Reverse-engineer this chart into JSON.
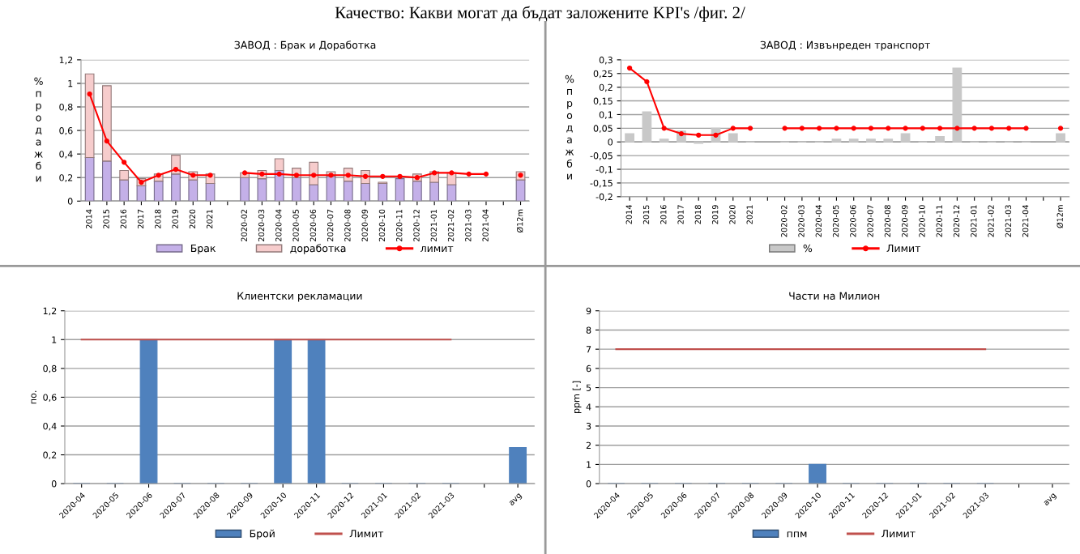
{
  "chart_data": [
    {
      "type": "bar",
      "title": "ЗАВОД : Брак и Доработка",
      "ylabel": "% продажби",
      "stacked": true,
      "grid": "y",
      "legend": "bottom",
      "annotations": [
        "Качество: Какви могат да бъдат заложените KPI's /фиг. 2/"
      ],
      "categories": [
        "2014",
        "2015",
        "2016",
        "2017",
        "2018",
        "2019",
        "2020",
        "2021",
        null,
        "2020-02",
        "2020-03",
        "2020-04",
        "2020-05",
        "2020-06",
        "2020-07",
        "2020-08",
        "2020-09",
        "2020-10",
        "2020-11",
        "2020-12",
        "2021-01",
        "2021-02",
        "2021-03",
        "2021-04",
        null,
        "Ø12m"
      ],
      "ylim": [
        0,
        1.2
      ],
      "yticks": [
        0,
        {
          "value": 0.2,
          "label": "0,2"
        },
        {
          "value": 0.4,
          "label": "0,4"
        },
        {
          "value": 0.6,
          "label": "0,6"
        },
        {
          "value": 0.8,
          "label": "0,8"
        },
        1,
        {
          "value": 1.2,
          "label": "1,2"
        }
      ],
      "series": [
        {
          "name": "Брак",
          "color": "#c4b0e8",
          "values": [
            0.37,
            0.34,
            0.18,
            0.13,
            0.17,
            0.23,
            0.18,
            0.15,
            null,
            0.2,
            0.19,
            0.26,
            0.2,
            0.14,
            0.21,
            0.17,
            0.15,
            0.15,
            0.19,
            0.17,
            0.16,
            0.14,
            null,
            null,
            null,
            0.18
          ]
        },
        {
          "name": "доработка",
          "color": "#f6cccc",
          "values": [
            0.71,
            0.64,
            0.08,
            0.06,
            0.06,
            0.16,
            0.07,
            0.08,
            null,
            0.04,
            0.07,
            0.1,
            0.08,
            0.19,
            0.04,
            0.11,
            0.11,
            0.01,
            null,
            0.06,
            0.09,
            0.1,
            null,
            null,
            null,
            0.07
          ]
        },
        {
          "name": "лимит",
          "type": "line",
          "color": "#ff0000",
          "marker": "circle",
          "values": [
            0.91,
            0.51,
            0.33,
            0.16,
            0.22,
            0.27,
            0.22,
            0.22,
            null,
            0.24,
            0.23,
            0.23,
            0.22,
            0.22,
            0.22,
            0.22,
            0.21,
            0.21,
            0.21,
            0.2,
            0.24,
            0.24,
            0.23,
            0.23,
            null,
            0.22
          ]
        }
      ]
    },
    {
      "type": "bar",
      "title": "ЗАВОД : Извънреден транспорт",
      "ylabel": "% продажби",
      "grid": "y",
      "legend": "bottom",
      "categories": [
        "2014",
        "2015",
        "2016",
        "2017",
        "2018",
        "2019",
        "2020",
        "2021",
        null,
        "2020-02",
        "2020-03",
        "2020-04",
        "2020-05",
        "2020-06",
        "2020-07",
        "2020-08",
        "2020-09",
        "2020-10",
        "2020-11",
        "2020-12",
        "2021-01",
        "2021-02",
        "2021-03",
        "2021-04",
        null,
        "Ø12m"
      ],
      "ylim": [
        -0.2,
        0.3
      ],
      "yticks": [
        {
          "value": -0.2,
          "label": "-0,2"
        },
        {
          "value": -0.15,
          "label": "-0,15"
        },
        {
          "value": -0.1,
          "label": "-0,1"
        },
        {
          "value": -0.05,
          "label": "-0,05"
        },
        0,
        {
          "value": 0.05,
          "label": "0,05"
        },
        {
          "value": 0.1,
          "label": "0,1"
        },
        {
          "value": 0.15,
          "label": "0,15"
        },
        {
          "value": 0.2,
          "label": "0,2"
        },
        {
          "value": 0.25,
          "label": "0,25"
        },
        {
          "value": 0.3,
          "label": "0,3"
        }
      ],
      "series": [
        {
          "name": "%",
          "color": "#c8c8c8",
          "values": [
            0.03,
            0.11,
            0.01,
            0.04,
            -0.005,
            0.05,
            0.03,
            0,
            null,
            0,
            0,
            0,
            0.01,
            0.01,
            0.01,
            0.01,
            0.03,
            0,
            0.02,
            0.27,
            0,
            0,
            0,
            0,
            null,
            0.03
          ]
        },
        {
          "name": "Лимит",
          "type": "line",
          "color": "#ff0000",
          "marker": "circle",
          "values": [
            0.27,
            0.22,
            0.05,
            0.03,
            0.025,
            0.025,
            0.05,
            0.05,
            null,
            0.05,
            0.05,
            0.05,
            0.05,
            0.05,
            0.05,
            0.05,
            0.05,
            0.05,
            0.05,
            0.05,
            0.05,
            0.05,
            0.05,
            0.05,
            null,
            0.05
          ]
        }
      ]
    },
    {
      "type": "bar",
      "title": "Клиентски рекламации",
      "ylabel": "по.",
      "grid": "y",
      "legend": "bottom",
      "categories": [
        "2020-04",
        "2020-05",
        "2020-06",
        "2020-07",
        "2020-08",
        "2020-09",
        "2020-10",
        "2020-11",
        "2020-12",
        "2021-01",
        "2021-02",
        "2021-03",
        null,
        "avg"
      ],
      "ylim": [
        0,
        1.2
      ],
      "yticks": [
        0,
        {
          "value": 0.2,
          "label": "0,2"
        },
        {
          "value": 0.4,
          "label": "0,4"
        },
        {
          "value": 0.6,
          "label": "0,6"
        },
        {
          "value": 0.8,
          "label": "0,8"
        },
        1,
        {
          "value": 1.2,
          "label": "1,2"
        }
      ],
      "series": [
        {
          "name": "Брой",
          "color": "#4f81bd",
          "values": [
            0,
            0,
            1,
            0,
            0,
            0,
            1,
            1,
            0,
            0,
            0,
            0,
            null,
            0.25
          ]
        },
        {
          "name": "Лимит",
          "type": "line",
          "color": "#c0504d",
          "values": [
            1,
            1,
            1,
            1,
            1,
            1,
            1,
            1,
            1,
            1,
            1,
            1,
            null,
            null
          ]
        }
      ]
    },
    {
      "type": "bar",
      "title": "Части на Милион",
      "ylabel": "ppm [-]",
      "grid": "y",
      "legend": "bottom",
      "categories": [
        "2020-04",
        "2020-05",
        "2020-06",
        "2020-07",
        "2020-08",
        "2020-09",
        "2020-10",
        "2020-11",
        "2020-12",
        "2021-01",
        "2021-02",
        "2021-03",
        null,
        "avg"
      ],
      "ylim": [
        0,
        9
      ],
      "yticks": [
        0,
        1,
        2,
        3,
        4,
        5,
        6,
        7,
        8,
        9
      ],
      "series": [
        {
          "name": "ппм",
          "color": "#4f81bd",
          "values": [
            0,
            0,
            0,
            0,
            0,
            0,
            1,
            0,
            0,
            0,
            0,
            0,
            null,
            null
          ]
        },
        {
          "name": "Лимит",
          "type": "line",
          "color": "#c0504d",
          "values": [
            7,
            7,
            7,
            7,
            7,
            7,
            7,
            7,
            7,
            7,
            7,
            7,
            null,
            null
          ]
        }
      ]
    }
  ]
}
